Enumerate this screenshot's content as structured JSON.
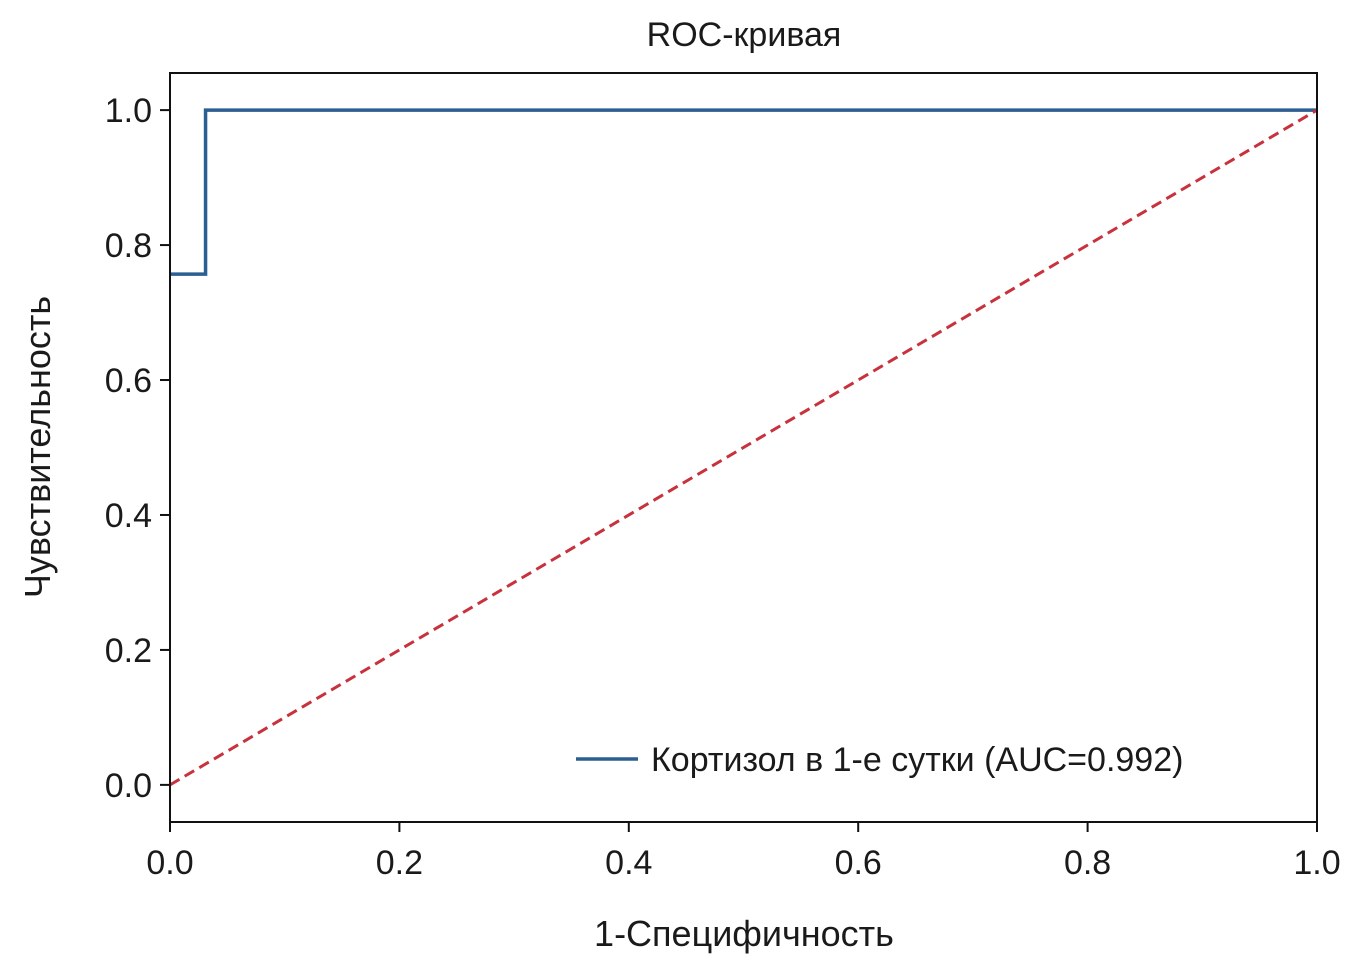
{
  "chart_data": {
    "type": "line",
    "title": "ROC-кривая",
    "xlabel": "1-Специфичность",
    "ylabel": "Чувствительность",
    "xlim": [
      0.0,
      1.0
    ],
    "ylim": [
      -0.055,
      1.055
    ],
    "xticks": [
      0.0,
      0.2,
      0.4,
      0.6,
      0.8,
      1.0
    ],
    "xtick_labels": [
      "0.0",
      "0.2",
      "0.4",
      "0.6",
      "0.8",
      "1.0"
    ],
    "yticks": [
      0.0,
      0.2,
      0.4,
      0.6,
      0.8,
      1.0
    ],
    "ytick_labels": [
      "0.0",
      "0.2",
      "0.4",
      "0.6",
      "0.8",
      "1.0"
    ],
    "grid": false,
    "legend_position": "lower-right",
    "series": [
      {
        "name": "Кортизол в 1-е сутки (AUC=0.992)",
        "style": "step",
        "color": "#2b5f91",
        "x": [
          0.0,
          0.031,
          0.031,
          1.0
        ],
        "y": [
          0.757,
          0.757,
          1.0,
          1.0
        ]
      },
      {
        "style": "dashed",
        "color": "#c8323c",
        "x": [
          0.0,
          1.0
        ],
        "y": [
          0.0,
          1.0
        ]
      }
    ]
  }
}
